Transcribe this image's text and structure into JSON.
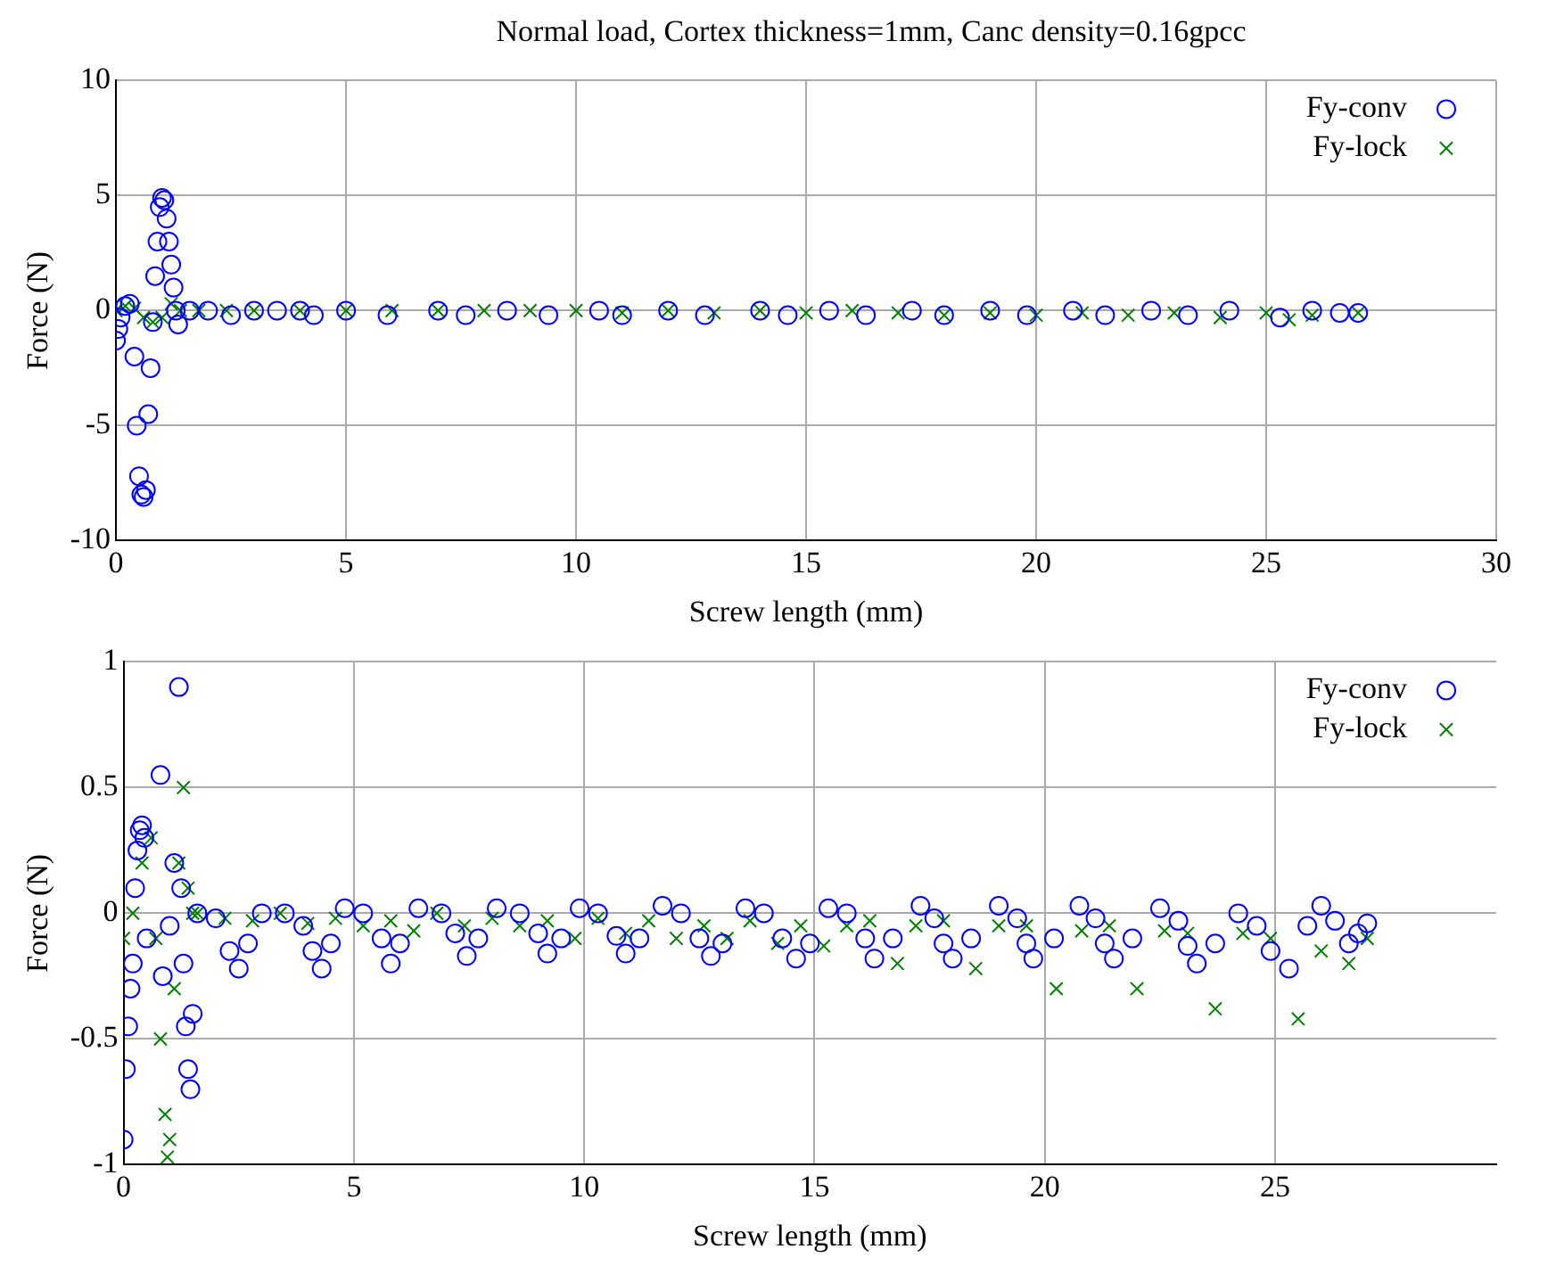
{
  "chart_data": [
    {
      "type": "scatter",
      "title": "Normal load, Cortex thickness=1mm, Canc density=0.16gpcc",
      "xlabel": "Screw length (mm)",
      "ylabel": "Force (N)",
      "xlim": [
        0,
        30
      ],
      "xticks": [
        0,
        5,
        10,
        15,
        20,
        25,
        30
      ],
      "ylim": [
        -10,
        10
      ],
      "yticks": [
        -10,
        -5,
        0,
        5,
        10
      ],
      "grid": true,
      "legend": "top right",
      "series": [
        {
          "name": "Fy-conv",
          "color": "#0000ff",
          "marker": "circle",
          "x": [
            0,
            0.05,
            0.1,
            0.2,
            0.3,
            0.4,
            0.45,
            0.5,
            0.55,
            0.6,
            0.65,
            0.7,
            0.75,
            0.8,
            0.85,
            0.9,
            0.95,
            1.0,
            1.05,
            1.1,
            1.15,
            1.2,
            1.25,
            1.3,
            1.35,
            1.6,
            2.0,
            2.5,
            3.0,
            3.5,
            4.0,
            4.3,
            5.0,
            5.9,
            7.0,
            7.6,
            8.5,
            9.4,
            10.5,
            11.0,
            12.0,
            12.8,
            14.0,
            14.6,
            15.5,
            16.3,
            17.3,
            18.0,
            19.0,
            19.8,
            20.8,
            21.5,
            22.5,
            23.3,
            24.2,
            25.3,
            26.0,
            26.6,
            27.0
          ],
          "values": [
            -1.3,
            -0.8,
            -0.3,
            0.2,
            0.3,
            -2,
            -5,
            -7.2,
            -8,
            -8.1,
            -7.8,
            -4.5,
            -2.5,
            -0.5,
            1.5,
            3,
            4.5,
            4.9,
            4.8,
            4,
            3,
            2,
            1,
            0,
            -0.6,
            0,
            0,
            -0.2,
            0,
            0,
            0,
            -0.2,
            0,
            -0.2,
            0,
            -0.2,
            0,
            -0.2,
            0,
            -0.2,
            0,
            -0.2,
            0,
            -0.2,
            0,
            -0.2,
            0,
            -0.2,
            0,
            -0.2,
            0,
            -0.2,
            0,
            -0.2,
            0,
            -0.3,
            0,
            -0.1,
            -0.1
          ]
        },
        {
          "name": "Fy-lock",
          "color": "#008000",
          "marker": "cross",
          "x": [
            0,
            0.2,
            0.4,
            0.6,
            0.8,
            1.0,
            1.2,
            1.4,
            1.8,
            2.4,
            3.0,
            4.0,
            5.0,
            6.0,
            7.0,
            8.0,
            9.0,
            10.0,
            11.0,
            12.0,
            13.0,
            14.0,
            15.0,
            16.0,
            17.0,
            18.0,
            19.0,
            20.0,
            21.0,
            22.0,
            23.0,
            24.0,
            25.0,
            25.5,
            26.0,
            27.0
          ],
          "values": [
            0,
            0.2,
            0.1,
            -0.3,
            -0.5,
            -0.3,
            0.3,
            0,
            0,
            0,
            0,
            0,
            0,
            0,
            0,
            0,
            0,
            0,
            -0.1,
            0,
            -0.1,
            0,
            -0.1,
            0,
            -0.1,
            -0.2,
            -0.1,
            -0.2,
            -0.1,
            -0.2,
            -0.1,
            -0.3,
            -0.1,
            -0.4,
            -0.2,
            -0.1
          ]
        }
      ]
    },
    {
      "type": "scatter",
      "xlabel": "Screw length (mm)",
      "ylabel": "Force (N)",
      "xlim": [
        0,
        29.8
      ],
      "xticks": [
        0,
        5,
        10,
        15,
        20,
        25
      ],
      "ylim": [
        -1,
        1
      ],
      "yticks": [
        -1,
        -0.5,
        0,
        0.5,
        1
      ],
      "grid": true,
      "legend": "top right",
      "series": [
        {
          "name": "Fy-conv",
          "color": "#0000ff",
          "marker": "circle",
          "x": [
            0,
            0.05,
            0.1,
            0.15,
            0.2,
            0.25,
            0.3,
            0.35,
            0.4,
            0.45,
            0.5,
            0.8,
            0.85,
            1.0,
            1.1,
            1.2,
            1.25,
            1.3,
            1.35,
            1.4,
            1.45,
            1.5,
            1.6,
            2.0,
            2.3,
            2.5,
            2.7,
            3.0,
            3.5,
            3.9,
            4.1,
            4.3,
            4.5,
            4.8,
            5.2,
            5.6,
            5.8,
            6.0,
            6.4,
            6.9,
            7.2,
            7.45,
            7.7,
            8.1,
            8.6,
            9.0,
            9.2,
            9.5,
            9.9,
            10.3,
            10.7,
            10.9,
            11.2,
            11.7,
            12.1,
            12.5,
            12.75,
            13.0,
            13.5,
            13.9,
            14.3,
            14.6,
            14.9,
            15.3,
            15.7,
            16.1,
            16.3,
            16.7,
            17.3,
            17.6,
            17.8,
            18.0,
            18.4,
            19.0,
            19.4,
            19.6,
            19.75,
            20.2,
            20.75,
            21.1,
            21.3,
            21.5,
            21.9,
            22.5,
            22.9,
            23.1,
            23.3,
            23.7,
            24.2,
            24.6,
            24.9,
            25.3,
            25.7,
            26.0,
            26.3,
            26.6,
            26.8,
            27.0
          ],
          "values": [
            -0.9,
            -0.62,
            -0.45,
            -0.3,
            -0.2,
            0.1,
            0.25,
            0.33,
            0.35,
            0.3,
            -0.1,
            0.55,
            -0.25,
            -0.05,
            0.2,
            0.9,
            0.1,
            -0.2,
            -0.45,
            -0.62,
            -0.7,
            -0.4,
            0.0,
            -0.02,
            -0.15,
            -0.22,
            -0.12,
            0.0,
            0.0,
            -0.05,
            -0.15,
            -0.22,
            -0.12,
            0.02,
            0.0,
            -0.1,
            -0.2,
            -0.12,
            0.02,
            0.0,
            -0.08,
            -0.17,
            -0.1,
            0.02,
            0.0,
            -0.08,
            -0.16,
            -0.1,
            0.02,
            0.0,
            -0.09,
            -0.16,
            -0.1,
            0.03,
            0.0,
            -0.1,
            -0.17,
            -0.12,
            0.02,
            0.0,
            -0.1,
            -0.18,
            -0.12,
            0.02,
            0.0,
            -0.1,
            -0.18,
            -0.1,
            0.03,
            -0.02,
            -0.12,
            -0.18,
            -0.1,
            0.03,
            -0.02,
            -0.12,
            -0.18,
            -0.1,
            0.03,
            -0.02,
            -0.12,
            -0.18,
            -0.1,
            0.02,
            -0.03,
            -0.13,
            -0.2,
            -0.12,
            0.0,
            -0.05,
            -0.15,
            -0.22,
            -0.05,
            0.03,
            -0.03,
            -0.12,
            -0.08,
            -0.04
          ]
        },
        {
          "name": "Fy-lock",
          "color": "#008000",
          "marker": "cross",
          "x": [
            0,
            0.2,
            0.4,
            0.6,
            0.7,
            0.8,
            0.9,
            0.95,
            1.0,
            1.1,
            1.2,
            1.3,
            1.4,
            1.5,
            1.6,
            2.2,
            2.8,
            3.4,
            4.0,
            4.6,
            5.2,
            5.8,
            6.3,
            6.8,
            7.4,
            8.0,
            8.6,
            9.2,
            9.8,
            10.3,
            10.9,
            11.4,
            12.0,
            12.6,
            13.1,
            13.6,
            14.2,
            14.7,
            15.2,
            15.7,
            16.2,
            16.8,
            17.2,
            17.8,
            18.5,
            19.0,
            19.6,
            20.25,
            20.8,
            21.4,
            22.0,
            22.6,
            23.1,
            23.7,
            24.3,
            24.9,
            25.5,
            26.0,
            26.6,
            27.0
          ],
          "values": [
            -0.1,
            0.0,
            0.2,
            0.3,
            -0.1,
            -0.5,
            -0.8,
            -0.97,
            -0.9,
            -0.3,
            0.2,
            0.5,
            0.1,
            0.0,
            0.0,
            -0.02,
            -0.03,
            0.0,
            -0.04,
            -0.02,
            -0.05,
            -0.03,
            -0.07,
            0.0,
            -0.05,
            -0.02,
            -0.05,
            -0.03,
            -0.1,
            -0.02,
            -0.08,
            -0.03,
            -0.1,
            -0.05,
            -0.1,
            -0.03,
            -0.12,
            -0.05,
            -0.13,
            -0.05,
            -0.03,
            -0.2,
            -0.05,
            -0.03,
            -0.22,
            -0.05,
            -0.05,
            -0.3,
            -0.07,
            -0.05,
            -0.3,
            -0.07,
            -0.08,
            -0.38,
            -0.08,
            -0.1,
            -0.42,
            -0.15,
            -0.2,
            -0.1
          ]
        }
      ]
    }
  ]
}
